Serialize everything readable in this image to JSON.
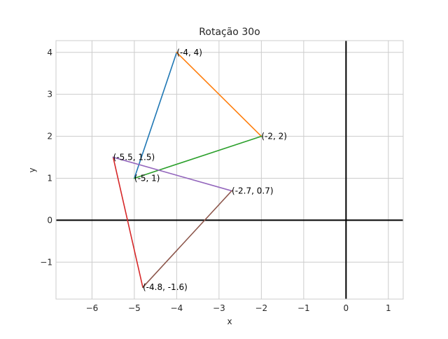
{
  "chart_data": {
    "type": "line",
    "title": "Rotação 30o",
    "xlabel": "x",
    "ylabel": "y",
    "xlim": [
      -6.85,
      1.35
    ],
    "ylim": [
      -1.88,
      4.28
    ],
    "xticks": [
      -6,
      -5,
      -4,
      -3,
      -2,
      -1,
      0,
      1
    ],
    "yticks": [
      -1,
      0,
      1,
      2,
      3,
      4
    ],
    "grid": true,
    "reference_lines": {
      "x": 0,
      "y": 0,
      "color": "#000000"
    },
    "segments": [
      {
        "from": [
          -5,
          1
        ],
        "to": [
          -4,
          4
        ],
        "color": "#1f77b4"
      },
      {
        "from": [
          -4,
          4
        ],
        "to": [
          -2,
          2
        ],
        "color": "#ff7f0e"
      },
      {
        "from": [
          -2,
          2
        ],
        "to": [
          -5,
          1
        ],
        "color": "#2ca02c"
      },
      {
        "from": [
          -5.5,
          1.5
        ],
        "to": [
          -4.8,
          -1.6
        ],
        "color": "#d62728"
      },
      {
        "from": [
          -5.5,
          1.5
        ],
        "to": [
          -2.7,
          0.7
        ],
        "color": "#9467bd"
      },
      {
        "from": [
          -2.7,
          0.7
        ],
        "to": [
          -4.8,
          -1.6
        ],
        "color": "#8c564b"
      }
    ],
    "point_labels": [
      {
        "x": -4,
        "y": 4,
        "text": "(-4, 4)"
      },
      {
        "x": -2,
        "y": 2,
        "text": "(-2, 2)"
      },
      {
        "x": -5,
        "y": 1,
        "text": "(-5, 1)"
      },
      {
        "x": -5.5,
        "y": 1.5,
        "text": "(-5.5, 1.5)"
      },
      {
        "x": -2.7,
        "y": 0.7,
        "text": "(-2.7, 0.7)"
      },
      {
        "x": -4.8,
        "y": -1.6,
        "text": "(-4.8, -1.6)"
      }
    ]
  }
}
